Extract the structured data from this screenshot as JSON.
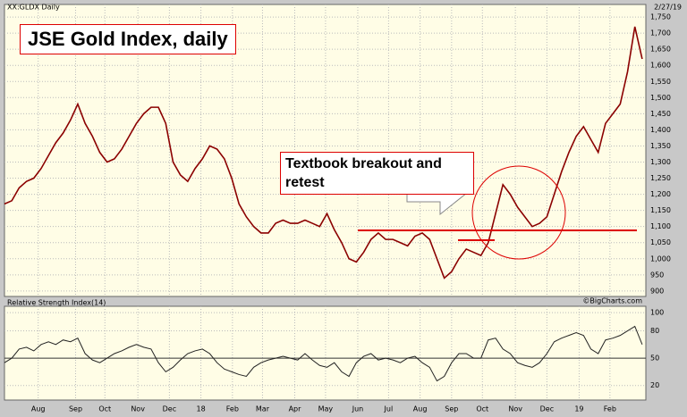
{
  "chart_data": [
    {
      "type": "line",
      "header": "XX:GLDX Daily",
      "date": "2/27/19",
      "title": "JSE Gold Index, daily",
      "annotation": "Textbook breakout and retest",
      "credit": "©BigCharts.com",
      "color": "#8b0000",
      "values": [
        1170,
        1180,
        1220,
        1240,
        1250,
        1280,
        1320,
        1360,
        1390,
        1430,
        1480,
        1420,
        1380,
        1330,
        1300,
        1310,
        1340,
        1380,
        1420,
        1450,
        1470,
        1470,
        1420,
        1300,
        1260,
        1240,
        1280,
        1310,
        1350,
        1340,
        1310,
        1250,
        1170,
        1130,
        1100,
        1080,
        1080,
        1110,
        1120,
        1110,
        1110,
        1120,
        1110,
        1100,
        1140,
        1090,
        1050,
        1000,
        990,
        1020,
        1060,
        1080,
        1060,
        1060,
        1050,
        1040,
        1070,
        1080,
        1060,
        1000,
        940,
        960,
        1000,
        1030,
        1020,
        1010,
        1050,
        1140,
        1230,
        1200,
        1160,
        1130,
        1100,
        1110,
        1130,
        1200,
        1270,
        1330,
        1380,
        1410,
        1370,
        1330,
        1420,
        1450,
        1480,
        1580,
        1720,
        1620
      ],
      "xlim": [
        0,
        87.5
      ],
      "ylim": [
        883,
        1789
      ],
      "yticks": [
        900,
        950,
        {
          "value": 1000,
          "label": "1,000"
        },
        {
          "value": 1050,
          "label": "1,050"
        },
        {
          "value": 1100,
          "label": "1,100"
        },
        {
          "value": 1150,
          "label": "1,150"
        },
        {
          "value": 1200,
          "label": "1,200"
        },
        {
          "value": 1250,
          "label": "1,250"
        },
        {
          "value": 1300,
          "label": "1,300"
        },
        {
          "value": 1350,
          "label": "1,350"
        },
        {
          "value": 1400,
          "label": "1,400"
        },
        {
          "value": 1450,
          "label": "1,450"
        },
        {
          "value": 1500,
          "label": "1,500"
        },
        {
          "value": 1550,
          "label": "1,550"
        },
        {
          "value": 1600,
          "label": "1,600"
        },
        {
          "value": 1650,
          "label": "1,650"
        },
        {
          "value": 1700,
          "label": "1,700"
        },
        {
          "value": 1750,
          "label": "1,750"
        }
      ],
      "grid": true
    },
    {
      "type": "line",
      "title": "Relative Strength Index(14)",
      "color": "#222222",
      "values": [
        45,
        50,
        60,
        62,
        58,
        65,
        68,
        65,
        70,
        68,
        72,
        55,
        48,
        45,
        50,
        55,
        58,
        62,
        65,
        62,
        60,
        45,
        35,
        40,
        48,
        55,
        58,
        60,
        55,
        45,
        38,
        35,
        32,
        30,
        40,
        45,
        48,
        50,
        52,
        50,
        48,
        55,
        48,
        42,
        40,
        45,
        35,
        30,
        45,
        52,
        55,
        48,
        50,
        48,
        45,
        50,
        52,
        45,
        40,
        25,
        30,
        45,
        55,
        55,
        50,
        50,
        70,
        72,
        60,
        55,
        45,
        42,
        40,
        45,
        55,
        68,
        72,
        75,
        78,
        75,
        60,
        55,
        70,
        72,
        75,
        80,
        85,
        65
      ],
      "xlim": [
        0,
        87.5
      ],
      "ylim": [
        4,
        107
      ],
      "yticks": [
        20,
        50,
        80,
        100
      ],
      "xticks": [
        {
          "value": 4.6,
          "label": "Aug"
        },
        {
          "value": 9.7,
          "label": "Sep"
        },
        {
          "value": 13.7,
          "label": "Oct"
        },
        {
          "value": 18.2,
          "label": "Nov"
        },
        {
          "value": 22.5,
          "label": "Dec"
        },
        {
          "value": 26.8,
          "label": "18"
        },
        {
          "value": 31.1,
          "label": "Feb"
        },
        {
          "value": 35.2,
          "label": "Mar"
        },
        {
          "value": 39.6,
          "label": "Apr"
        },
        {
          "value": 43.8,
          "label": "May"
        },
        {
          "value": 48.2,
          "label": "Jun"
        },
        {
          "value": 52.4,
          "label": "Jul"
        },
        {
          "value": 56.7,
          "label": "Aug"
        },
        {
          "value": 61,
          "label": "Sep"
        },
        {
          "value": 65.2,
          "label": "Oct"
        },
        {
          "value": 69.7,
          "label": "Nov"
        },
        {
          "value": 74,
          "label": "Dec"
        },
        {
          "value": 78.4,
          "label": "19"
        },
        {
          "value": 82.6,
          "label": "Feb"
        }
      ],
      "grid": true
    }
  ]
}
